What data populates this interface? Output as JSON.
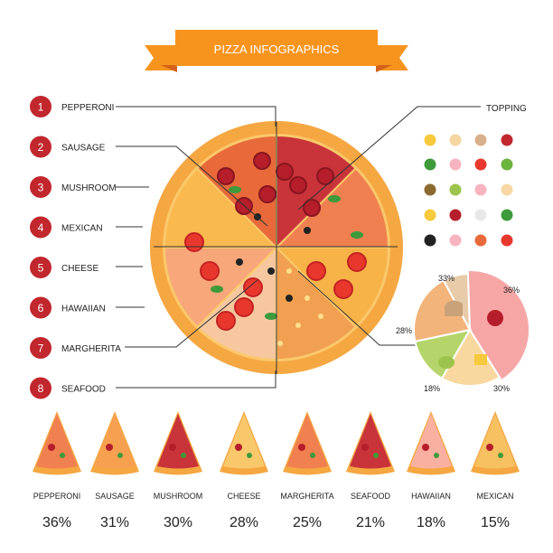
{
  "banner": {
    "title": "PIZZA INFOGRAPHICS"
  },
  "legend": [
    {
      "num": "1",
      "label": "PEPPERONI"
    },
    {
      "num": "2",
      "label": "SAUSAGE"
    },
    {
      "num": "3",
      "label": "MUSHROOM"
    },
    {
      "num": "4",
      "label": "MEXICAN"
    },
    {
      "num": "5",
      "label": "CHEESE"
    },
    {
      "num": "6",
      "label": "HAWAIIAN"
    },
    {
      "num": "7",
      "label": "MARGHERITA"
    },
    {
      "num": "8",
      "label": "SEAFOOD"
    }
  ],
  "topping_label": "TOPPING",
  "colors": {
    "banner": "#F7941D",
    "banner_dark": "#D4621A",
    "badge": "#C1272D",
    "crust": "#F5A742",
    "crust_light": "#FBC86B",
    "sauce": "#E85A2C",
    "pie1": "#F7A6A6",
    "pie2": "#F9D8A0",
    "pie3": "#B5D56A",
    "pie4": "#F2B47A",
    "pie5": "#E8CBA8"
  },
  "chart_data": [
    {
      "type": "pie",
      "labels": [
        "36%",
        "30%",
        "18%",
        "28%",
        "33%"
      ],
      "values": [
        36,
        30,
        18,
        28,
        33
      ]
    },
    {
      "type": "table",
      "categories": [
        "PEPPERONI",
        "SAUSAGE",
        "MUSHROOM",
        "CHEESE",
        "MARGHERITA",
        "SEAFOOD",
        "HAWAIIAN",
        "MEXICAN"
      ],
      "values": [
        36,
        31,
        30,
        28,
        25,
        21,
        18,
        15
      ],
      "labels": [
        "36%",
        "31%",
        "30%",
        "28%",
        "25%",
        "21%",
        "18%",
        "15%"
      ]
    }
  ]
}
